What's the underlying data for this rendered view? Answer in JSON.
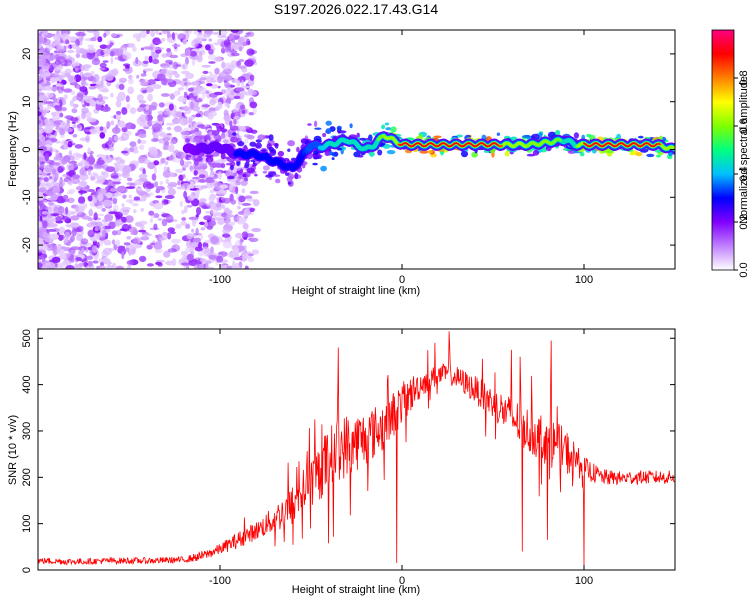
{
  "figure_title": "S197.2026.022.17.43.G14",
  "chart_data": [
    {
      "type": "heatmap",
      "title": "S197.2026.022.17.43.G14",
      "xlabel": "Height of straight line (km)",
      "ylabel": "Frequency (Hz)",
      "xlim": [
        -200,
        150
      ],
      "ylim": [
        -25,
        25
      ],
      "xticks": [
        -100,
        0,
        100
      ],
      "xtick_labels": [
        "-100",
        "0",
        "100"
      ],
      "yticks": [
        -20,
        -10,
        0,
        10,
        20
      ],
      "ytick_labels": [
        "-20",
        "-10",
        "0",
        "10",
        "20"
      ],
      "colorbar": {
        "label": "Normalized spectral amplitude",
        "range": [
          0,
          1
        ],
        "ticks": [
          0.0,
          0.2,
          0.4,
          0.6,
          0.8
        ],
        "tick_labels": [
          "0.0",
          "0.2",
          "0.4",
          "0.6",
          "0.8"
        ],
        "colormap": [
          "#ffffff",
          "#c080ff",
          "#8000ff",
          "#0000ff",
          "#00c0ff",
          "#00ff80",
          "#80ff00",
          "#ffff00",
          "#ff8000",
          "#ff0000",
          "#ff0080"
        ]
      },
      "ridge": {
        "x": [
          -115,
          -100,
          -90,
          -80,
          -70,
          -60,
          -55,
          -50,
          -45,
          -40,
          -30,
          -20,
          -15,
          -10,
          -5,
          0,
          10,
          30,
          50,
          60,
          70,
          80,
          90,
          95,
          100,
          120,
          140,
          150
        ],
        "frequency": [
          0.0,
          0.5,
          -1.0,
          -1.0,
          -2.5,
          -4.0,
          -1.5,
          1.0,
          0.5,
          1.0,
          2.0,
          0.0,
          1.0,
          3.0,
          2.0,
          1.0,
          1.0,
          1.0,
          1.0,
          1.0,
          1.0,
          1.5,
          2.0,
          1.0,
          1.0,
          1.0,
          1.0,
          0.0
        ],
        "amplitude": [
          0.2,
          0.25,
          0.3,
          0.3,
          0.3,
          0.3,
          0.3,
          0.35,
          0.4,
          0.45,
          0.5,
          0.55,
          0.55,
          0.6,
          0.75,
          0.95,
          0.95,
          0.95,
          0.95,
          0.7,
          0.6,
          0.6,
          0.55,
          0.5,
          0.9,
          0.95,
          0.9,
          0.6
        ]
      }
    },
    {
      "type": "line",
      "xlabel": "Height of straight line (km)",
      "ylabel": "SNR (10 * v/v)",
      "xlim": [
        -200,
        150
      ],
      "ylim": [
        0,
        520
      ],
      "xticks": [
        -100,
        0,
        100
      ],
      "xtick_labels": [
        "-100",
        "0",
        "100"
      ],
      "yticks": [
        0,
        100,
        200,
        300,
        400,
        500
      ],
      "ytick_labels": [
        "0",
        "100",
        "200",
        "300",
        "400",
        "500"
      ],
      "series": [
        {
          "name": "SNR",
          "color": "#ff0000",
          "x": [
            -200,
            -180,
            -160,
            -140,
            -120,
            -110,
            -100,
            -90,
            -80,
            -70,
            -60,
            -50,
            -45,
            -40,
            -35,
            -30,
            -20,
            -10,
            -5,
            0,
            5,
            10,
            15,
            20,
            25,
            30,
            40,
            50,
            60,
            70,
            80,
            90,
            95,
            100,
            110,
            120,
            130,
            140,
            150
          ],
          "y": [
            20,
            18,
            20,
            20,
            22,
            30,
            45,
            65,
            85,
            110,
            140,
            190,
            215,
            240,
            260,
            270,
            285,
            310,
            335,
            360,
            380,
            400,
            412,
            420,
            425,
            415,
            390,
            360,
            330,
            300,
            280,
            255,
            240,
            220,
            200,
            198,
            200,
            200,
            200
          ],
          "noise": [
            7,
            7,
            7,
            7,
            7,
            10,
            12,
            18,
            20,
            30,
            45,
            55,
            65,
            70,
            70,
            70,
            60,
            55,
            50,
            45,
            40,
            30,
            25,
            22,
            22,
            25,
            30,
            35,
            45,
            50,
            55,
            50,
            40,
            25,
            18,
            15,
            15,
            15,
            15
          ]
        }
      ],
      "annotations": [
        {
          "x": -35,
          "y": 480
        },
        {
          "x": -3,
          "y": 15
        },
        {
          "x": 18,
          "y": 490
        },
        {
          "x": 26,
          "y": 515
        },
        {
          "x": 60,
          "y": 475
        },
        {
          "x": 65,
          "y": 460
        },
        {
          "x": 66,
          "y": 40
        },
        {
          "x": 80,
          "y": 65
        },
        {
          "x": 82,
          "y": 495
        },
        {
          "x": 100,
          "y": 10
        }
      ]
    }
  ]
}
